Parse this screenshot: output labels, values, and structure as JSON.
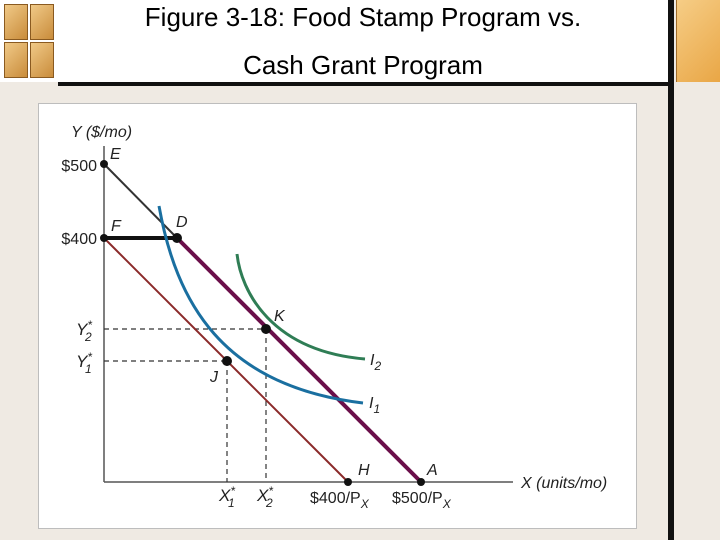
{
  "title": {
    "line1": "Figure 3-18: Food Stamp Program vs.",
    "line2": "Cash Grant Program"
  },
  "diagram": {
    "y_axis_label": "Y ($/mo)",
    "x_axis_label": "X (units/mo)",
    "y_ticks": [
      "$500",
      "$400"
    ],
    "y_star_labels": [
      "Y",
      "Y"
    ],
    "y_star_subs": [
      "2",
      "1"
    ],
    "x_star_labels": [
      "X",
      "X"
    ],
    "x_star_subs": [
      "1",
      "2"
    ],
    "x_tick_H": "$400/P",
    "x_tick_A": "$500/P",
    "x_tick_sub": "X",
    "points": [
      "E",
      "F",
      "D",
      "K",
      "J",
      "H",
      "A"
    ],
    "curve_labels": [
      "I",
      "I"
    ],
    "curve_subs": [
      "2",
      "1"
    ],
    "colors": {
      "budget_cash": "#6a0f4a",
      "budget_original": "#8b2a2a",
      "indifference_I1": "#1a6fa0",
      "indifference_I2": "#2f7d55",
      "food_stamp_kink": "#111111"
    }
  }
}
